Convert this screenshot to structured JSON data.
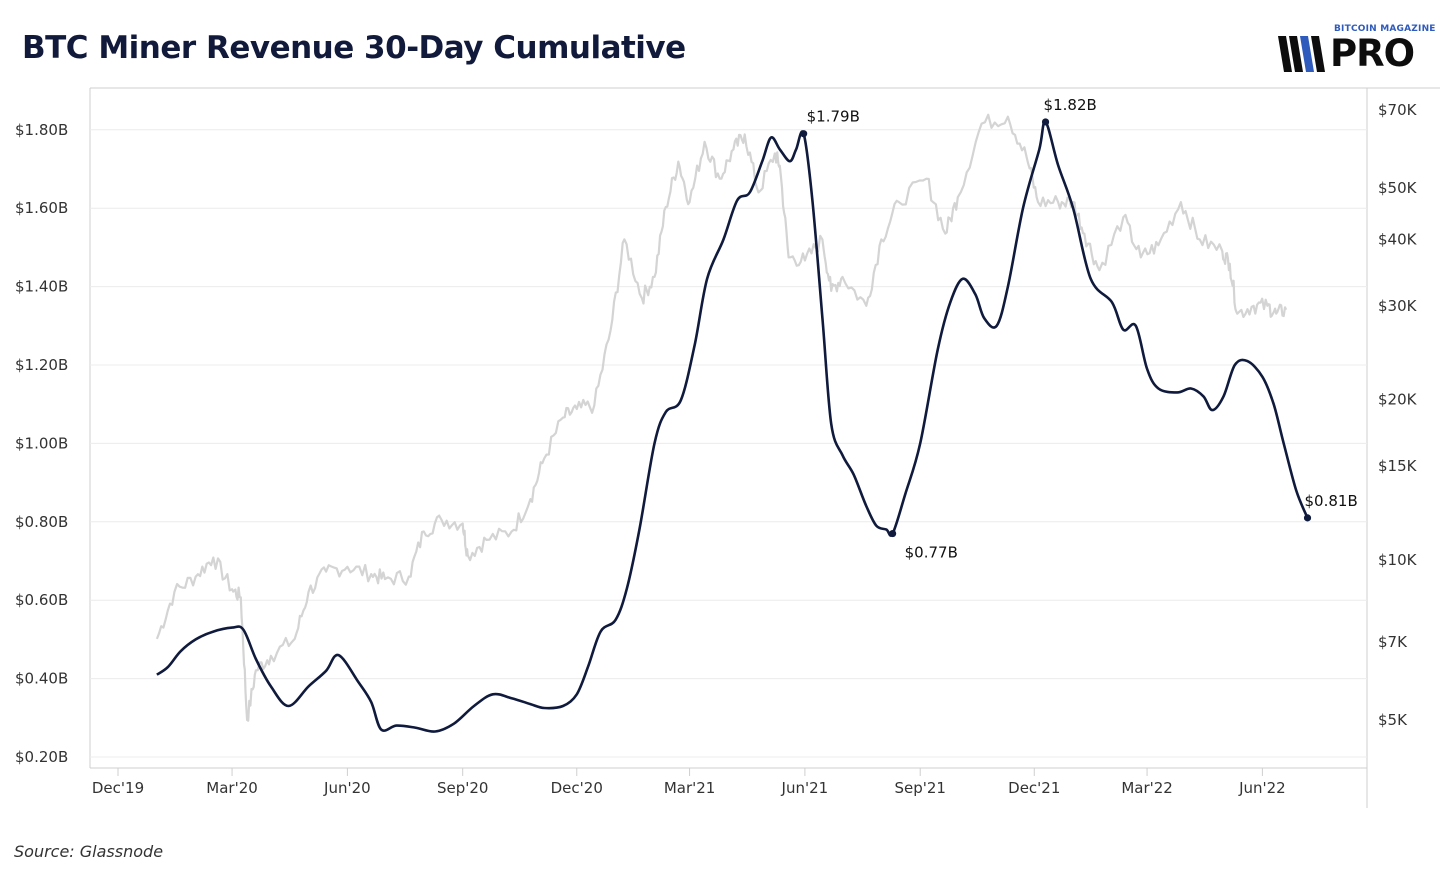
{
  "header": {
    "title": "BTC Miner Revenue 30-Day Cumulative",
    "logo_top": "BITCOIN MAGAZINE",
    "logo_main": "PRO"
  },
  "footer": {
    "source": "Source: Glassnode"
  },
  "colors": {
    "revenue": "#0f1a3c",
    "price": "#d4d4d4",
    "grid": "#ececec",
    "axis": "#cfcfcf"
  },
  "chart_data": {
    "type": "line",
    "title": "BTC Miner Revenue 30-Day Cumulative",
    "x_ticks": [
      "Dec'19",
      "Mar'20",
      "Jun'20",
      "Sep'20",
      "Dec'20",
      "Mar'21",
      "Jun'21",
      "Sep'21",
      "Dec'21",
      "Mar'22",
      "Jun'22"
    ],
    "y_left": {
      "ticks": [
        0.2,
        0.4,
        0.6,
        0.8,
        1.0,
        1.2,
        1.4,
        1.6,
        1.8
      ],
      "tick_labels": [
        "$0.20B",
        "$0.40B",
        "$0.60B",
        "$0.80B",
        "$1.00B",
        "$1.20B",
        "$1.40B",
        "$1.60B",
        "$1.80B"
      ],
      "range": [
        0.2,
        1.82
      ]
    },
    "y_right": {
      "scale": "log",
      "ticks": [
        5000,
        7000,
        10000,
        15000,
        20000,
        30000,
        40000,
        50000,
        70000
      ],
      "tick_labels": [
        "$5K",
        "$7K",
        "$10K",
        "$15K",
        "$20K",
        "$30K",
        "$40K",
        "$50K",
        "$70K"
      ],
      "range": [
        4500,
        72000
      ]
    },
    "grid": "horizontal",
    "series": [
      {
        "axis": "left",
        "points": [
          [
            "2020-01-01",
            0.41
          ],
          [
            "2020-01-10",
            0.43
          ],
          [
            "2020-01-20",
            0.47
          ],
          [
            "2020-02-01",
            0.5
          ],
          [
            "2020-02-15",
            0.52
          ],
          [
            "2020-03-01",
            0.53
          ],
          [
            "2020-03-10",
            0.525
          ],
          [
            "2020-03-20",
            0.45
          ],
          [
            "2020-04-01",
            0.38
          ],
          [
            "2020-04-15",
            0.33
          ],
          [
            "2020-05-01",
            0.38
          ],
          [
            "2020-05-15",
            0.42
          ],
          [
            "2020-05-25",
            0.46
          ],
          [
            "2020-06-10",
            0.39
          ],
          [
            "2020-06-20",
            0.34
          ],
          [
            "2020-06-28",
            0.27
          ],
          [
            "2020-07-10",
            0.28
          ],
          [
            "2020-07-25",
            0.275
          ],
          [
            "2020-08-10",
            0.265
          ],
          [
            "2020-08-25",
            0.285
          ],
          [
            "2020-09-10",
            0.33
          ],
          [
            "2020-09-25",
            0.36
          ],
          [
            "2020-10-10",
            0.35
          ],
          [
            "2020-10-25",
            0.335
          ],
          [
            "2020-11-05",
            0.325
          ],
          [
            "2020-11-20",
            0.33
          ],
          [
            "2020-12-01",
            0.36
          ],
          [
            "2020-12-10",
            0.43
          ],
          [
            "2020-12-20",
            0.52
          ],
          [
            "2021-01-01",
            0.55
          ],
          [
            "2021-01-10",
            0.63
          ],
          [
            "2021-01-20",
            0.78
          ],
          [
            "2021-02-01",
            1.0
          ],
          [
            "2021-02-10",
            1.08
          ],
          [
            "2021-02-22",
            1.11
          ],
          [
            "2021-03-05",
            1.25
          ],
          [
            "2021-03-15",
            1.42
          ],
          [
            "2021-03-28",
            1.52
          ],
          [
            "2021-04-08",
            1.62
          ],
          [
            "2021-04-18",
            1.64
          ],
          [
            "2021-04-28",
            1.72
          ],
          [
            "2021-05-05",
            1.78
          ],
          [
            "2021-05-12",
            1.75
          ],
          [
            "2021-05-20",
            1.72
          ],
          [
            "2021-05-25",
            1.75
          ],
          [
            "2021-05-31",
            1.79
          ],
          [
            "2021-06-07",
            1.62
          ],
          [
            "2021-06-15",
            1.32
          ],
          [
            "2021-06-22",
            1.05
          ],
          [
            "2021-07-01",
            0.97
          ],
          [
            "2021-07-10",
            0.92
          ],
          [
            "2021-07-20",
            0.84
          ],
          [
            "2021-07-28",
            0.79
          ],
          [
            "2021-08-05",
            0.78
          ],
          [
            "2021-08-10",
            0.77
          ],
          [
            "2021-08-20",
            0.87
          ],
          [
            "2021-09-01",
            1.0
          ],
          [
            "2021-09-15",
            1.24
          ],
          [
            "2021-09-25",
            1.36
          ],
          [
            "2021-10-05",
            1.42
          ],
          [
            "2021-10-15",
            1.38
          ],
          [
            "2021-10-22",
            1.32
          ],
          [
            "2021-11-01",
            1.3
          ],
          [
            "2021-11-10",
            1.4
          ],
          [
            "2021-11-22",
            1.6
          ],
          [
            "2021-12-05",
            1.75
          ],
          [
            "2021-12-10",
            1.82
          ],
          [
            "2021-12-20",
            1.71
          ],
          [
            "2022-01-01",
            1.6
          ],
          [
            "2022-01-15",
            1.42
          ],
          [
            "2022-02-01",
            1.36
          ],
          [
            "2022-02-10",
            1.29
          ],
          [
            "2022-02-20",
            1.3
          ],
          [
            "2022-03-01",
            1.19
          ],
          [
            "2022-03-10",
            1.14
          ],
          [
            "2022-03-25",
            1.13
          ],
          [
            "2022-04-05",
            1.14
          ],
          [
            "2022-04-15",
            1.12
          ],
          [
            "2022-04-22",
            1.085
          ],
          [
            "2022-05-01",
            1.12
          ],
          [
            "2022-05-10",
            1.2
          ],
          [
            "2022-05-20",
            1.21
          ],
          [
            "2022-06-01",
            1.17
          ],
          [
            "2022-06-10",
            1.1
          ],
          [
            "2022-06-18",
            1.0
          ],
          [
            "2022-06-28",
            0.88
          ],
          [
            "2022-07-07",
            0.81
          ]
        ],
        "labels": [
          {
            "date": "2021-05-31",
            "value": 1.79,
            "text": "$1.79B"
          },
          {
            "date": "2021-08-10",
            "value": 0.77,
            "text": "$0.77B"
          },
          {
            "date": "2021-12-10",
            "value": 1.82,
            "text": "$1.82B"
          },
          {
            "date": "2022-07-07",
            "value": 0.81,
            "text": "$0.81B"
          }
        ]
      },
      {
        "axis": "right",
        "points": [
          [
            "2020-01-01",
            7100
          ],
          [
            "2020-01-15",
            8700
          ],
          [
            "2020-02-01",
            9300
          ],
          [
            "2020-02-15",
            10100
          ],
          [
            "2020-03-01",
            8800
          ],
          [
            "2020-03-08",
            8500
          ],
          [
            "2020-03-13",
            5000
          ],
          [
            "2020-03-20",
            6200
          ],
          [
            "2020-04-01",
            6600
          ],
          [
            "2020-04-20",
            7100
          ],
          [
            "2020-05-01",
            8700
          ],
          [
            "2020-05-15",
            9500
          ],
          [
            "2020-06-01",
            9700
          ],
          [
            "2020-06-20",
            9400
          ],
          [
            "2020-07-01",
            9200
          ],
          [
            "2020-07-20",
            9300
          ],
          [
            "2020-08-01",
            11300
          ],
          [
            "2020-08-15",
            11900
          ],
          [
            "2020-09-01",
            11700
          ],
          [
            "2020-09-05",
            10200
          ],
          [
            "2020-09-20",
            10900
          ],
          [
            "2020-10-10",
            11300
          ],
          [
            "2020-10-25",
            13000
          ],
          [
            "2020-11-05",
            15500
          ],
          [
            "2020-11-20",
            18500
          ],
          [
            "2020-12-01",
            19200
          ],
          [
            "2020-12-15",
            19500
          ],
          [
            "2020-12-28",
            27000
          ],
          [
            "2021-01-08",
            40000
          ],
          [
            "2021-01-22",
            31000
          ],
          [
            "2021-02-01",
            34000
          ],
          [
            "2021-02-10",
            46000
          ],
          [
            "2021-02-20",
            56000
          ],
          [
            "2021-03-01",
            47000
          ],
          [
            "2021-03-13",
            61000
          ],
          [
            "2021-03-25",
            52000
          ],
          [
            "2021-04-05",
            59000
          ],
          [
            "2021-04-14",
            63000
          ],
          [
            "2021-04-25",
            49000
          ],
          [
            "2021-05-08",
            58000
          ],
          [
            "2021-05-12",
            55000
          ],
          [
            "2021-05-19",
            37000
          ],
          [
            "2021-06-01",
            36500
          ],
          [
            "2021-06-15",
            40000
          ],
          [
            "2021-06-22",
            32000
          ],
          [
            "2021-07-01",
            34000
          ],
          [
            "2021-07-20",
            30000
          ],
          [
            "2021-08-01",
            40000
          ],
          [
            "2021-08-15",
            47000
          ],
          [
            "2021-09-06",
            52000
          ],
          [
            "2021-09-21",
            41000
          ],
          [
            "2021-10-01",
            48000
          ],
          [
            "2021-10-20",
            66000
          ],
          [
            "2021-11-10",
            68000
          ],
          [
            "2021-11-25",
            57000
          ],
          [
            "2021-12-04",
            47000
          ],
          [
            "2021-12-20",
            47000
          ],
          [
            "2022-01-01",
            47000
          ],
          [
            "2022-01-10",
            41000
          ],
          [
            "2022-01-22",
            35000
          ],
          [
            "2022-02-10",
            44000
          ],
          [
            "2022-02-24",
            37000
          ],
          [
            "2022-03-10",
            39000
          ],
          [
            "2022-03-28",
            47000
          ],
          [
            "2022-04-12",
            40000
          ],
          [
            "2022-04-30",
            38000
          ],
          [
            "2022-05-06",
            36000
          ],
          [
            "2022-05-12",
            29000
          ],
          [
            "2022-05-25",
            30000
          ],
          [
            "2022-06-05",
            30000
          ],
          [
            "2022-06-12",
            29000
          ],
          [
            "2022-06-20",
            29500
          ]
        ]
      }
    ]
  }
}
